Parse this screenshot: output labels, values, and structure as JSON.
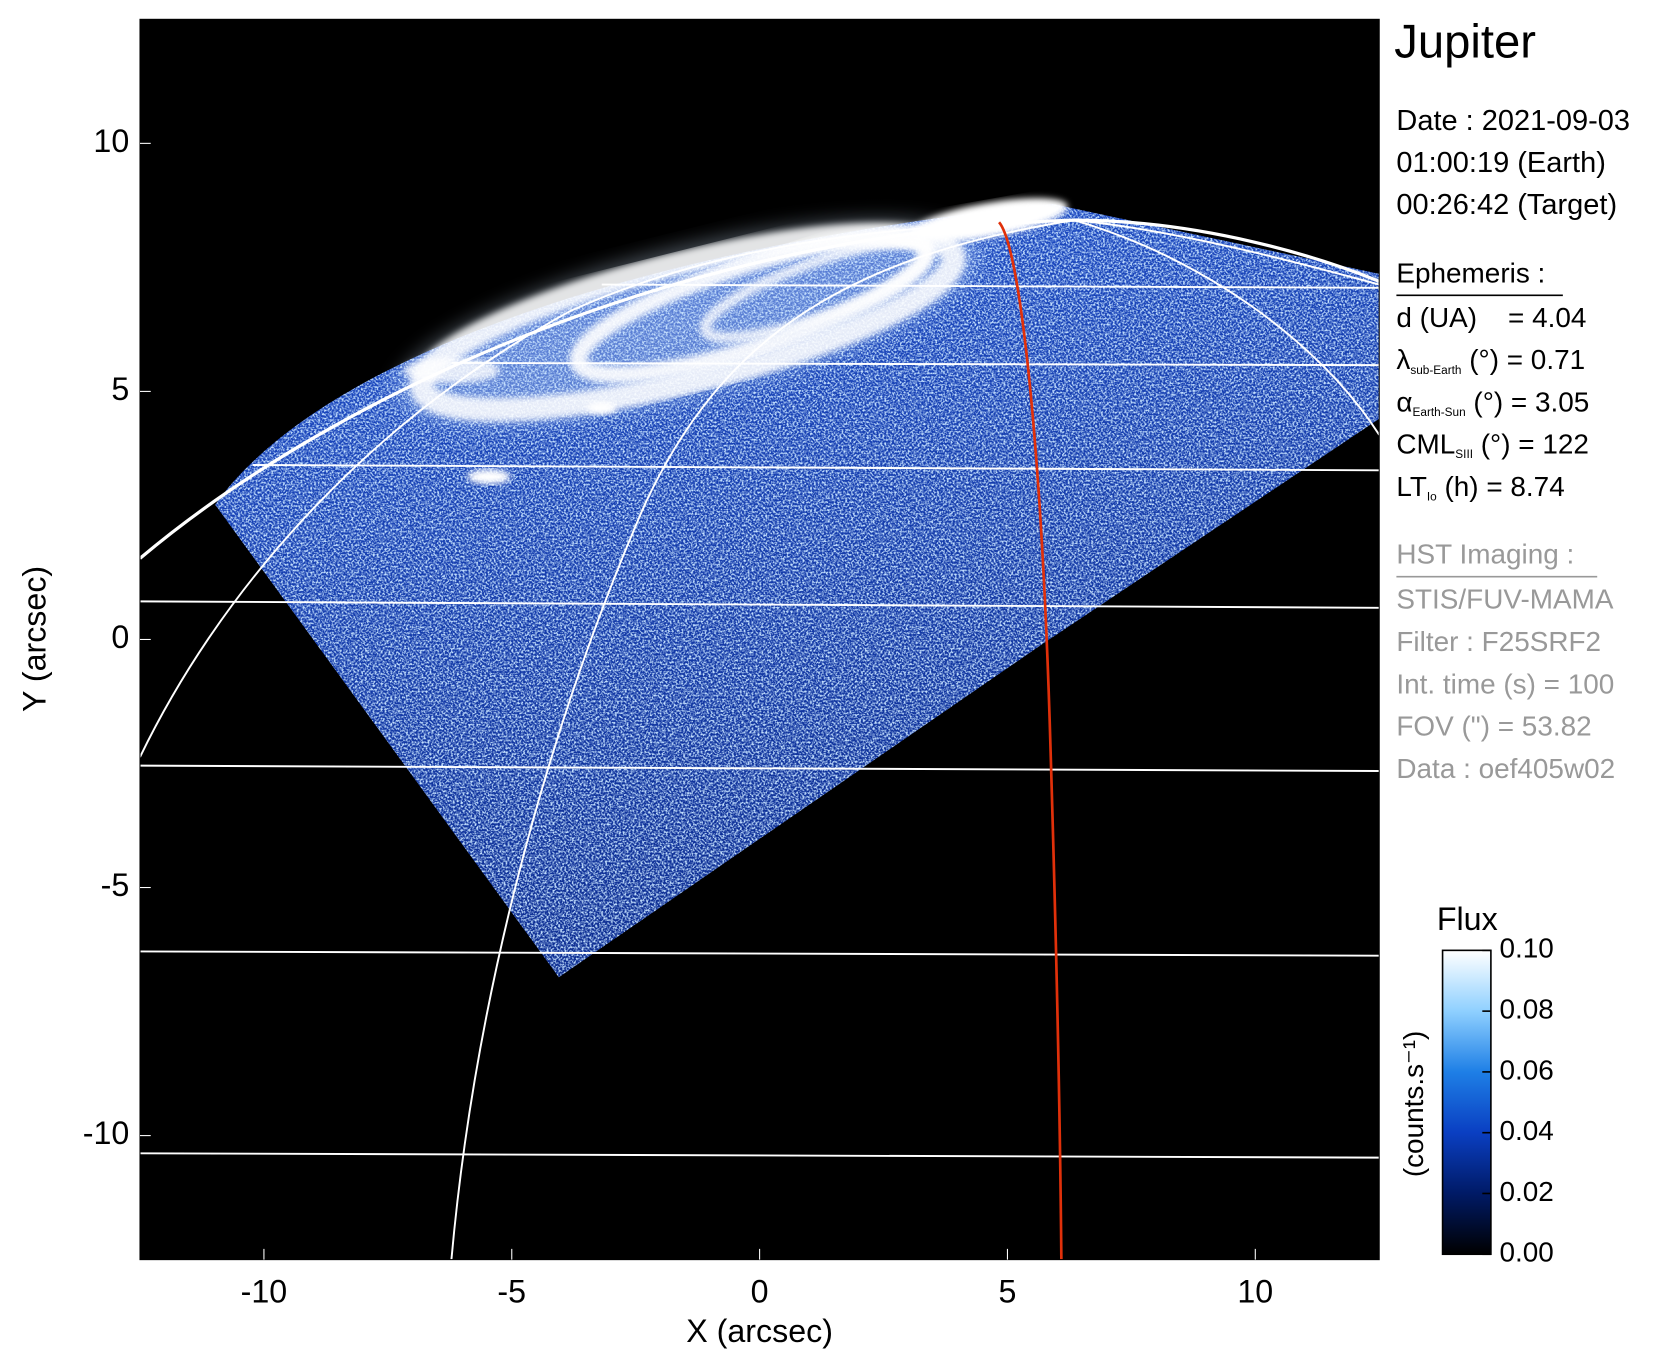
{
  "chart_data": {
    "type": "image",
    "title": "Jupiter",
    "xlabel": "X (arcsec)",
    "ylabel": "Y (arcsec)",
    "xlim": [
      -12.5,
      12.5
    ],
    "ylim": [
      -12.5,
      12.5
    ],
    "xticks": [
      -10,
      -5,
      0,
      5,
      10
    ],
    "yticks": [
      -10,
      -5,
      0,
      5,
      10
    ],
    "date_lines": [
      "Date : 2021-09-03",
      "01:00:19 (Earth)",
      "00:26:42 (Target)"
    ],
    "ephemeris": {
      "heading": "Ephemeris :",
      "lines": [
        {
          "text": "d (UA)    = 4.04"
        },
        {
          "symbol": "λ",
          "sub": "sub-Earth",
          "text": " (°) = 0.71"
        },
        {
          "symbol": "α",
          "sub": "Earth-Sun",
          "text": " (°) = 3.05"
        },
        {
          "symbol": "CML",
          "sub": "SIII",
          "text": " (°) = 122"
        },
        {
          "symbol": "LT",
          "sub": "Io",
          "text": " (h) = 8.74"
        }
      ]
    },
    "instrument": {
      "heading": "HST Imaging :",
      "lines": [
        "STIS/FUV-MAMA",
        "Filter : F25SRF2",
        "Int. time (s) = 100",
        "FOV (\") = 53.82",
        "Data : oef405w02"
      ]
    },
    "colorbar": {
      "label": "Flux",
      "unit": "(counts.s⁻¹)",
      "lim": [
        0,
        0.1
      ],
      "ticks": [
        {
          "value": 0,
          "label": "0.00"
        },
        0.02,
        0.04,
        0.06,
        0.08,
        {
          "value": 0.1,
          "label": "0.10"
        }
      ],
      "colors": [
        "#000000",
        "#001a66",
        "#0a3fc2",
        "#1e7fe6",
        "#8fd0ff",
        "#ffffff"
      ]
    }
  }
}
